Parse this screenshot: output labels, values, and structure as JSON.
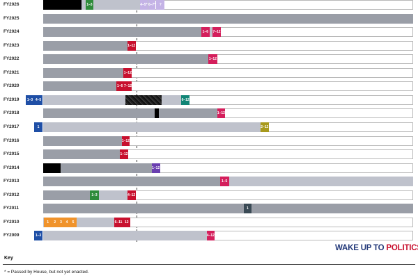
{
  "colors": {
    "track_border": "#b9b9b9",
    "dark_fill": "#9a9ea7",
    "light_fill": "#bfc2cc",
    "white": "#ffffff",
    "black": "#000000",
    "red": "#c8102e",
    "crimson": "#d41f5c",
    "blue": "#1f4fa6",
    "green": "#2e8b3a",
    "orange": "#f0932b",
    "purple": "#6a3fb0",
    "lavender": "#c4b3e6",
    "teal": "#118576",
    "olive": "#a89a1d",
    "slate": "#3a4a55"
  },
  "brand": {
    "part1": "WAKE UP TO",
    "part2": "POLITICS"
  },
  "key": {
    "title": "Key",
    "note": "* = Passed by House, but not yet enacted."
  },
  "chart_data": {
    "type": "timeline",
    "title": "",
    "years": [
      {
        "label": "FY2026",
        "segments": [
          {
            "start": 0,
            "end": 0.104,
            "fill": "black"
          },
          {
            "start": 0.104,
            "end": 0.304,
            "fill": "light"
          }
        ],
        "boxes": [
          {
            "text": "1–3",
            "start": 0.114,
            "end": 0.136,
            "color": "green"
          },
          {
            "text": "4–5*",
            "start": 0.262,
            "end": 0.282,
            "color": "lavender"
          },
          {
            "text": "6–7*",
            "start": 0.284,
            "end": 0.304,
            "color": "lavender"
          },
          {
            "text": "?",
            "start": 0.306,
            "end": 0.328,
            "color": "lavender"
          }
        ]
      },
      {
        "label": "FY2025",
        "segments": [
          {
            "start": 0,
            "end": 1,
            "fill": "dark"
          }
        ],
        "boxes": []
      },
      {
        "label": "FY2024",
        "segments": [
          {
            "start": 0,
            "end": 0.427,
            "fill": "dark"
          },
          {
            "start": 0.427,
            "end": 0.48,
            "fill": "light"
          }
        ],
        "boxes": [
          {
            "text": "1–6",
            "start": 0.427,
            "end": 0.45,
            "color": "crimson"
          },
          {
            "text": "7–12",
            "start": 0.458,
            "end": 0.48,
            "color": "crimson"
          }
        ]
      },
      {
        "label": "FY2023",
        "segments": [
          {
            "start": 0,
            "end": 0.227,
            "fill": "dark"
          }
        ],
        "boxes": [
          {
            "text": "1–12",
            "start": 0.227,
            "end": 0.25,
            "color": "red"
          }
        ]
      },
      {
        "label": "FY2022",
        "segments": [
          {
            "start": 0,
            "end": 0.447,
            "fill": "dark"
          }
        ],
        "boxes": [
          {
            "text": "1–12",
            "start": 0.447,
            "end": 0.47,
            "color": "crimson"
          }
        ]
      },
      {
        "label": "FY2021",
        "segments": [
          {
            "start": 0,
            "end": 0.217,
            "fill": "dark"
          }
        ],
        "boxes": [
          {
            "text": "1–12",
            "start": 0.217,
            "end": 0.24,
            "color": "red"
          }
        ]
      },
      {
        "label": "FY2020",
        "segments": [
          {
            "start": 0,
            "end": 0.197,
            "fill": "dark"
          }
        ],
        "boxes": [
          {
            "text": "1–6",
            "start": 0.197,
            "end": 0.218,
            "color": "red"
          },
          {
            "text": "7–12",
            "start": 0.218,
            "end": 0.24,
            "color": "red"
          }
        ]
      },
      {
        "label": "FY2019",
        "pre": [
          {
            "text": "1–3",
            "color": "blue"
          },
          {
            "text": "4–5",
            "color": "blue"
          }
        ],
        "segments": [
          {
            "start": 0,
            "end": 0.223,
            "fill": "light"
          },
          {
            "start": 0.223,
            "end": 0.32,
            "fill": "black"
          },
          {
            "start": 0.32,
            "end": 0.373,
            "fill": "light"
          }
        ],
        "boxes": [
          {
            "text": "6–12",
            "start": 0.373,
            "end": 0.396,
            "color": "teal"
          }
        ]
      },
      {
        "label": "FY2018",
        "segments": [
          {
            "start": 0,
            "end": 0.302,
            "fill": "dark"
          },
          {
            "start": 0.302,
            "end": 0.312,
            "fill": "black"
          },
          {
            "start": 0.312,
            "end": 0.47,
            "fill": "dark"
          }
        ],
        "boxes": [
          {
            "text": "1–12",
            "start": 0.47,
            "end": 0.492,
            "color": "crimson"
          }
        ]
      },
      {
        "label": "FY2017",
        "pre": [
          {
            "text": "1",
            "color": "blue"
          }
        ],
        "segments": [
          {
            "start": 0,
            "end": 0.587,
            "fill": "light"
          }
        ],
        "boxes": [
          {
            "text": "2–12",
            "start": 0.587,
            "end": 0.61,
            "color": "olive"
          }
        ]
      },
      {
        "label": "FY2016",
        "segments": [
          {
            "start": 0,
            "end": 0.212,
            "fill": "dark"
          }
        ],
        "boxes": [
          {
            "text": "1–12",
            "start": 0.212,
            "end": 0.234,
            "color": "red"
          }
        ]
      },
      {
        "label": "FY2015",
        "segments": [
          {
            "start": 0,
            "end": 0.207,
            "fill": "dark"
          }
        ],
        "boxes": [
          {
            "text": "1–12",
            "start": 0.207,
            "end": 0.23,
            "color": "red"
          }
        ]
      },
      {
        "label": "FY2014",
        "segments": [
          {
            "start": 0,
            "end": 0.047,
            "fill": "black"
          },
          {
            "start": 0.047,
            "end": 0.293,
            "fill": "dark"
          }
        ],
        "boxes": [
          {
            "text": "1–12",
            "start": 0.293,
            "end": 0.316,
            "color": "purple"
          }
        ]
      },
      {
        "label": "FY2013",
        "segments": [
          {
            "start": 0,
            "end": 0.478,
            "fill": "dark"
          },
          {
            "start": 0.502,
            "end": 1,
            "fill": "light"
          }
        ],
        "boxes": [
          {
            "text": "1–5",
            "start": 0.478,
            "end": 0.502,
            "color": "crimson"
          }
        ]
      },
      {
        "label": "FY2012",
        "segments": [
          {
            "start": 0,
            "end": 0.127,
            "fill": "dark"
          },
          {
            "start": 0.15,
            "end": 0.227,
            "fill": "light"
          }
        ],
        "boxes": [
          {
            "text": "1–3",
            "start": 0.127,
            "end": 0.15,
            "color": "green"
          },
          {
            "text": "4–12",
            "start": 0.227,
            "end": 0.25,
            "color": "red"
          }
        ]
      },
      {
        "label": "FY2011",
        "segments": [
          {
            "start": 0,
            "end": 0.542,
            "fill": "dark"
          },
          {
            "start": 0.563,
            "end": 1,
            "fill": "dark"
          }
        ],
        "boxes": [
          {
            "text": "1",
            "start": 0.542,
            "end": 0.563,
            "color": "slate"
          }
        ]
      },
      {
        "label": "FY2010",
        "segments": [
          {
            "start": 0,
            "end": 0.192,
            "fill": "light"
          }
        ],
        "boxes": [
          {
            "text": "1",
            "start": 0.002,
            "end": 0.023,
            "color": "orange"
          },
          {
            "text": "2",
            "start": 0.023,
            "end": 0.04,
            "color": "orange"
          },
          {
            "text": "3",
            "start": 0.04,
            "end": 0.056,
            "color": "orange"
          },
          {
            "text": "4",
            "start": 0.056,
            "end": 0.072,
            "color": "orange"
          },
          {
            "text": "5",
            "start": 0.072,
            "end": 0.09,
            "color": "orange"
          },
          {
            "text": "6–11",
            "start": 0.192,
            "end": 0.215,
            "color": "red"
          },
          {
            "text": "12",
            "start": 0.215,
            "end": 0.236,
            "color": "red"
          }
        ]
      },
      {
        "label": "FY2009",
        "pre": [
          {
            "text": "1–3",
            "color": "blue"
          }
        ],
        "segments": [
          {
            "start": 0,
            "end": 0.442,
            "fill": "light"
          }
        ],
        "boxes": [
          {
            "text": "4–12",
            "start": 0.442,
            "end": 0.463,
            "color": "crimson"
          }
        ]
      }
    ]
  }
}
